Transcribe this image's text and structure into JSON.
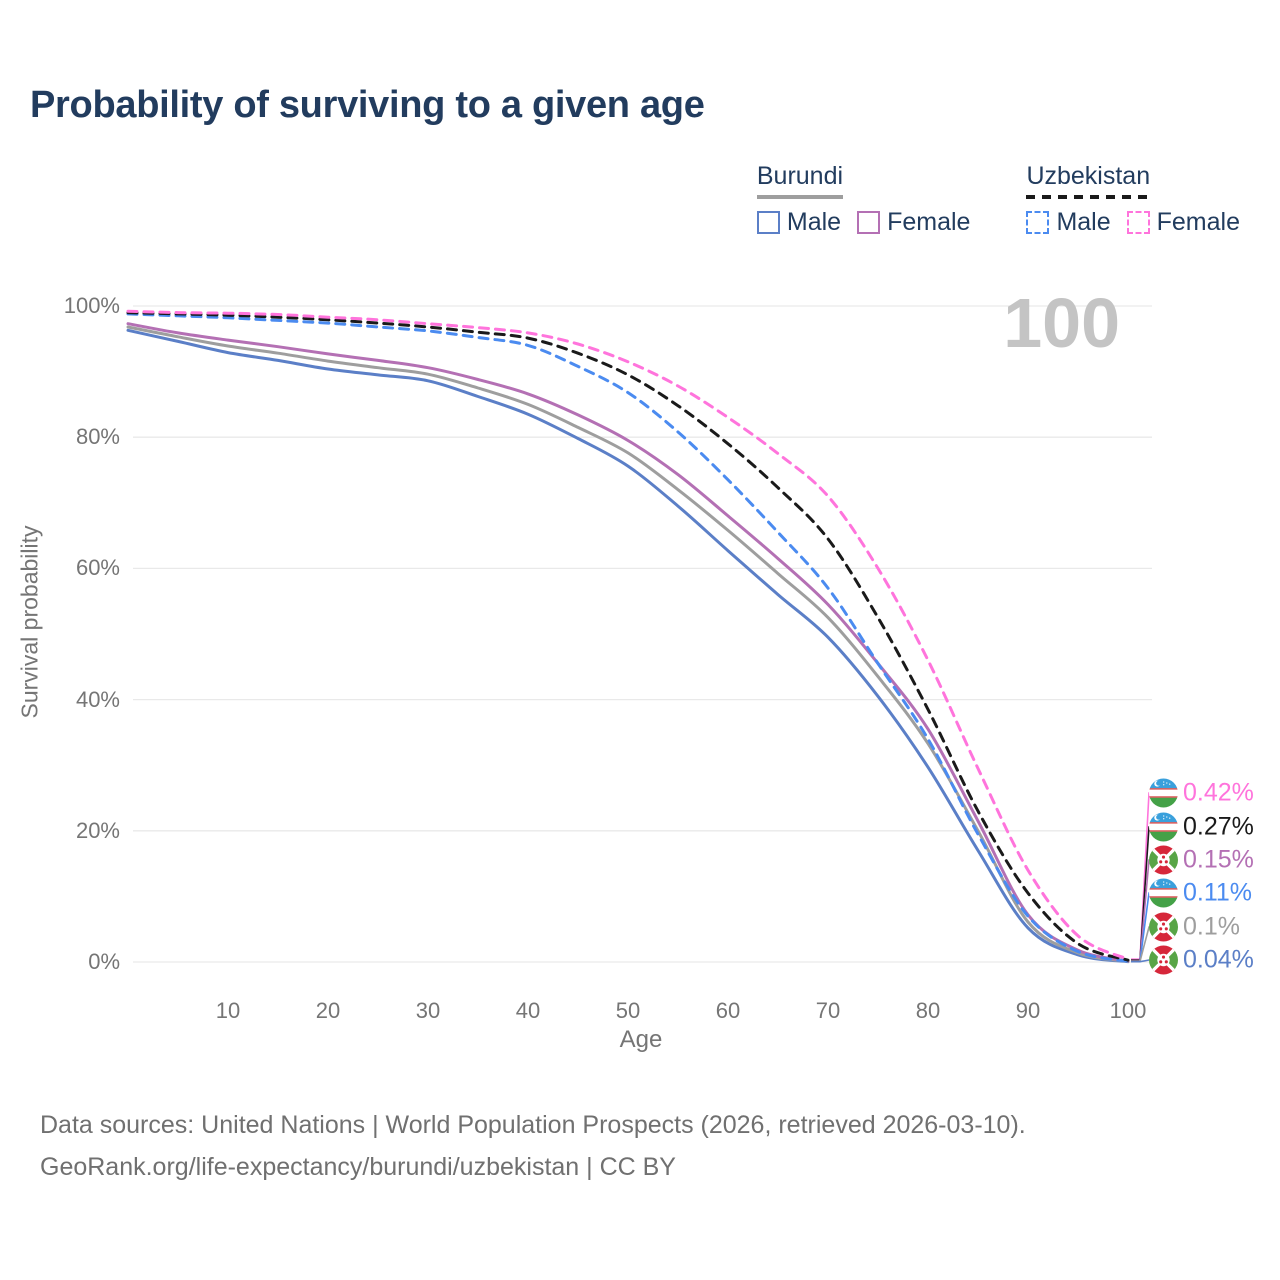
{
  "page": {
    "title": "Probability of surviving to a given age",
    "watermark_age": "100"
  },
  "legend": {
    "groups": [
      {
        "country": "Burundi",
        "line_style": "solid",
        "line_color": "#9e9e9e",
        "items": [
          {
            "label": "Male",
            "color": "#5b7fc7"
          },
          {
            "label": "Female",
            "color": "#b470b4"
          }
        ]
      },
      {
        "country": "Uzbekistan",
        "line_style": "dashed",
        "line_color": "#1a1a1a",
        "items": [
          {
            "label": "Male",
            "color": "#4b8bf0"
          },
          {
            "label": "Female",
            "color": "#ff74dc"
          }
        ]
      }
    ]
  },
  "chart_data": {
    "type": "line",
    "title": "Probability of surviving to a given age",
    "xlabel": "Age",
    "ylabel": "Survival probability",
    "xlim": [
      0,
      100
    ],
    "ylim": [
      0,
      100
    ],
    "x_ticks": [
      10,
      20,
      30,
      40,
      50,
      60,
      70,
      80,
      90,
      100
    ],
    "y_ticks_percent": [
      0,
      20,
      40,
      60,
      80,
      100
    ],
    "grid": "horizontal",
    "legend_position": "top-right",
    "ages": [
      0,
      5,
      10,
      15,
      20,
      25,
      30,
      35,
      40,
      45,
      50,
      55,
      60,
      65,
      70,
      75,
      80,
      85,
      90,
      95,
      100
    ],
    "series": [
      {
        "name": "Burundi Male",
        "country": "Burundi",
        "sex": "Male",
        "style": "solid",
        "color": "#5b7fc7",
        "values": [
          96.3,
          94.6,
          92.9,
          91.7,
          90.4,
          89.5,
          88.6,
          86.2,
          83.5,
          79.8,
          75.6,
          69.5,
          62.7,
          56.0,
          49.5,
          40.5,
          29.7,
          17.0,
          5.2,
          1.1,
          0.04
        ],
        "end_label": "0.04%"
      },
      {
        "name": "Burundi Both sexes",
        "country": "Burundi",
        "sex": "Both",
        "style": "solid",
        "color": "#9e9e9e",
        "values": [
          96.8,
          95.3,
          93.9,
          92.8,
          91.6,
          90.6,
          89.6,
          87.5,
          85.0,
          81.5,
          77.6,
          72.0,
          65.8,
          59.2,
          52.5,
          43.5,
          33.3,
          20.0,
          6.1,
          1.4,
          0.1
        ],
        "end_label": "0.1%"
      },
      {
        "name": "Burundi Female",
        "country": "Burundi",
        "sex": "Female",
        "style": "solid",
        "color": "#b470b4",
        "values": [
          97.3,
          95.9,
          94.8,
          93.8,
          92.7,
          91.7,
          90.6,
          88.8,
          86.6,
          83.4,
          79.5,
          74.3,
          68.0,
          61.5,
          54.5,
          45.5,
          35.5,
          21.5,
          7.2,
          1.8,
          0.15
        ],
        "end_label": "0.15%"
      },
      {
        "name": "Uzbekistan Male",
        "country": "Uzbekistan",
        "sex": "Male",
        "style": "dashed",
        "color": "#4b8bf0",
        "values": [
          98.8,
          98.5,
          98.2,
          97.8,
          97.4,
          96.8,
          96.2,
          95.2,
          94.0,
          90.8,
          86.8,
          80.8,
          73.5,
          65.5,
          57.0,
          45.5,
          34.0,
          19.5,
          7.0,
          1.6,
          0.11
        ],
        "end_label": "0.11%"
      },
      {
        "name": "Uzbekistan Both sexes",
        "country": "Uzbekistan",
        "sex": "Both",
        "style": "dashed",
        "color": "#1a1a1a",
        "values": [
          99.0,
          98.8,
          98.6,
          98.3,
          97.9,
          97.4,
          96.8,
          96.0,
          95.1,
          92.8,
          89.5,
          84.8,
          79.0,
          72.3,
          64.5,
          52.5,
          38.5,
          23.0,
          10.5,
          2.8,
          0.27
        ],
        "end_label": "0.27%"
      },
      {
        "name": "Uzbekistan Female",
        "country": "Uzbekistan",
        "sex": "Female",
        "style": "dashed",
        "color": "#ff74dc",
        "values": [
          99.2,
          99.0,
          98.9,
          98.7,
          98.3,
          97.9,
          97.3,
          96.7,
          95.9,
          94.2,
          91.5,
          87.8,
          83.0,
          77.5,
          71.0,
          60.0,
          46.0,
          29.5,
          14.0,
          4.0,
          0.42
        ],
        "end_label": "0.42%"
      }
    ],
    "end_labels": [
      {
        "text": "0.42%",
        "flag": "uzbekistan",
        "color": "#ff74dc",
        "series": "Uzbekistan Female"
      },
      {
        "text": "0.27%",
        "flag": "uzbekistan",
        "color": "#1a1a1a",
        "series": "Uzbekistan Both sexes"
      },
      {
        "text": "0.15%",
        "flag": "burundi",
        "color": "#b470b4",
        "series": "Burundi Female"
      },
      {
        "text": "0.11%",
        "flag": "uzbekistan",
        "color": "#4b8bf0",
        "series": "Uzbekistan Male"
      },
      {
        "text": "0.1%",
        "flag": "burundi",
        "color": "#9e9e9e",
        "series": "Burundi Both sexes"
      },
      {
        "text": "0.04%",
        "flag": "burundi",
        "color": "#5b7fc7",
        "series": "Burundi Male"
      }
    ]
  },
  "footer": {
    "line1": "Data sources: United Nations | World Population Prospects (2026, retrieved 2026-03-10).",
    "line2": "GeoRank.org/life-expectancy/burundi/uzbekistan | CC BY"
  }
}
